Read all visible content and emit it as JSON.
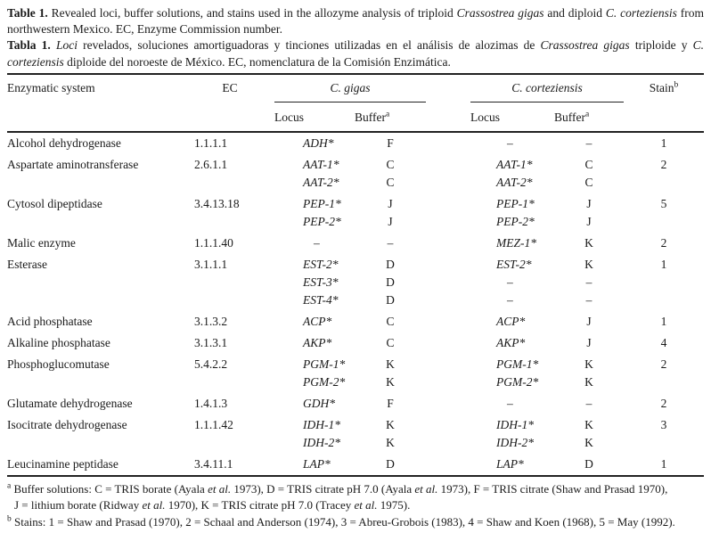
{
  "colors": {
    "background": "#ffffff",
    "text": "#1a1a1a",
    "rule": "#222222"
  },
  "caption": {
    "en": [
      {
        "t": "Table 1.",
        "b": true
      },
      {
        "t": " Revealed loci, buffer solutions, and stains used in the allozyme analysis of triploid "
      },
      {
        "t": "Crassostrea gigas",
        "i": true
      },
      {
        "t": " and diploid "
      },
      {
        "t": "C. corteziensis",
        "i": true
      },
      {
        "t": " from northwestern Mexico. EC, Enzyme Commission number."
      }
    ],
    "es": [
      {
        "t": "Tabla 1.",
        "b": true
      },
      {
        "t": " "
      },
      {
        "t": "Loci",
        "i": true
      },
      {
        "t": " revelados, soluciones amortiguadoras y tinciones utilizadas en el análisis de alozimas de "
      },
      {
        "t": "Crassostrea gigas",
        "i": true
      },
      {
        "t": " triploide y "
      },
      {
        "t": "C. corteziensis",
        "i": true
      },
      {
        "t": " diploide del noroeste de México. EC, nomenclatura de la Comisión Enzimática."
      }
    ]
  },
  "table": {
    "headers": {
      "enzymatic_system": "Enzymatic system",
      "ec": "EC",
      "gigas": "C. gigas",
      "corteziensis": "C. corteziensis",
      "locus": "Locus",
      "buffer": [
        {
          "t": "Buffer"
        },
        {
          "t": "a",
          "sup": true
        }
      ],
      "stain": [
        {
          "t": "Stain"
        },
        {
          "t": "b",
          "sup": true
        }
      ]
    },
    "rows": [
      {
        "enzyme": "Alcohol dehydrogenase",
        "ec": "1.1.1.1",
        "gigas_locus": [
          "ADH*"
        ],
        "gigas_buffer": [
          "F"
        ],
        "cort_locus": [
          "–"
        ],
        "cort_buffer": [
          "–"
        ],
        "stain": "1"
      },
      {
        "enzyme": "Aspartate aminotransferase",
        "ec": "2.6.1.1",
        "gigas_locus": [
          "AAT-1*",
          "AAT-2*"
        ],
        "gigas_buffer": [
          "C",
          "C"
        ],
        "cort_locus": [
          "AAT-1*",
          "AAT-2*"
        ],
        "cort_buffer": [
          "C",
          "C"
        ],
        "stain": "2"
      },
      {
        "enzyme": "Cytosol dipeptidase",
        "ec": "3.4.13.18",
        "gigas_locus": [
          "PEP-1*",
          "PEP-2*"
        ],
        "gigas_buffer": [
          "J",
          "J"
        ],
        "cort_locus": [
          "PEP-1*",
          "PEP-2*"
        ],
        "cort_buffer": [
          "J",
          "J"
        ],
        "stain": "5"
      },
      {
        "enzyme": "Malic enzyme",
        "ec": "1.1.1.40",
        "gigas_locus": [
          "–"
        ],
        "gigas_buffer": [
          "–"
        ],
        "cort_locus": [
          "MEZ-1*"
        ],
        "cort_buffer": [
          "K"
        ],
        "stain": "2"
      },
      {
        "enzyme": "Esterase",
        "ec": "3.1.1.1",
        "gigas_locus": [
          "EST-2*",
          "EST-3*",
          "EST-4*"
        ],
        "gigas_buffer": [
          "D",
          "D",
          "D"
        ],
        "cort_locus": [
          "EST-2*",
          "–",
          "–"
        ],
        "cort_buffer": [
          "K",
          "–",
          "–"
        ],
        "stain": "1"
      },
      {
        "enzyme": "Acid phosphatase",
        "ec": "3.1.3.2",
        "gigas_locus": [
          "ACP*"
        ],
        "gigas_buffer": [
          "C"
        ],
        "cort_locus": [
          "ACP*"
        ],
        "cort_buffer": [
          "J"
        ],
        "stain": "1"
      },
      {
        "enzyme": "Alkaline phosphatase",
        "ec": "3.1.3.1",
        "gigas_locus": [
          "AKP*"
        ],
        "gigas_buffer": [
          "C"
        ],
        "cort_locus": [
          "AKP*"
        ],
        "cort_buffer": [
          "J"
        ],
        "stain": "4"
      },
      {
        "enzyme": "Phosphoglucomutase",
        "ec": "5.4.2.2",
        "gigas_locus": [
          "PGM-1*",
          "PGM-2*"
        ],
        "gigas_buffer": [
          "K",
          "K"
        ],
        "cort_locus": [
          "PGM-1*",
          "PGM-2*"
        ],
        "cort_buffer": [
          "K",
          "K"
        ],
        "stain": "2"
      },
      {
        "enzyme": "Glutamate dehydrogenase",
        "ec": "1.4.1.3",
        "gigas_locus": [
          "GDH*"
        ],
        "gigas_buffer": [
          "F"
        ],
        "cort_locus": [
          "–"
        ],
        "cort_buffer": [
          "–"
        ],
        "stain": "2"
      },
      {
        "enzyme": "Isocitrate dehydrogenase",
        "ec": "1.1.1.42",
        "gigas_locus": [
          "IDH-1*",
          "IDH-2*"
        ],
        "gigas_buffer": [
          "K",
          "K"
        ],
        "cort_locus": [
          "IDH-1*",
          "IDH-2*"
        ],
        "cort_buffer": [
          "K",
          "K"
        ],
        "stain": "3"
      },
      {
        "enzyme": "Leucinamine peptidase",
        "ec": "3.4.11.1",
        "gigas_locus": [
          "LAP*"
        ],
        "gigas_buffer": [
          "D"
        ],
        "cort_locus": [
          "LAP*"
        ],
        "cort_buffer": [
          "D"
        ],
        "stain": "1"
      }
    ]
  },
  "footnotes": {
    "a1": [
      {
        "t": "a",
        "sup": true
      },
      {
        "t": " Buffer solutions: C = TRIS borate (Ayala "
      },
      {
        "t": "et al.",
        "i": true
      },
      {
        "t": " 1973), D = TRIS citrate pH 7.0 (Ayala "
      },
      {
        "t": "et al.",
        "i": true
      },
      {
        "t": " 1973), F = TRIS citrate (Shaw and Prasad 1970),"
      }
    ],
    "a2": [
      {
        "t": "J = lithium borate (Ridway "
      },
      {
        "t": "et al.",
        "i": true
      },
      {
        "t": " 1970), K = TRIS citrate pH 7.0 (Tracey "
      },
      {
        "t": "et al.",
        "i": true
      },
      {
        "t": " 1975)."
      }
    ],
    "b": [
      {
        "t": "b",
        "sup": true
      },
      {
        "t": " Stains: 1 = Shaw and Prasad (1970), 2 = Schaal and Anderson (1974), 3 = Abreu-Grobois (1983), 4 = Shaw and Koen (1968), 5 = May (1992)."
      }
    ]
  }
}
